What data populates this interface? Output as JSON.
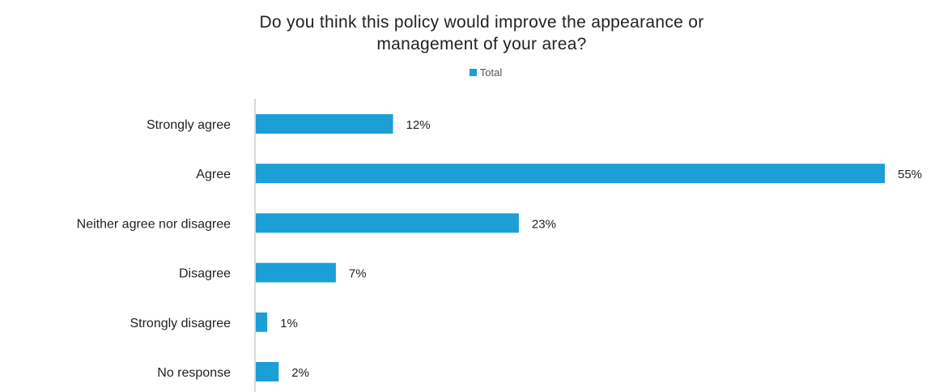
{
  "chart_data": {
    "type": "bar",
    "orientation": "horizontal",
    "title_line1": "Do you think this policy would improve the appearance or",
    "title_line2": "management of your area?",
    "legend": [
      "Total"
    ],
    "categories": [
      "Strongly agree",
      "Agree",
      "Neither agree nor disagree",
      "Disagree",
      "Strongly disagree",
      "No response"
    ],
    "series": [
      {
        "name": "Total",
        "values": [
          12,
          55,
          23,
          7,
          1,
          2
        ],
        "labels": [
          "12%",
          "55%",
          "23%",
          "7%",
          "1%",
          "2%"
        ],
        "color": "#1b9fd6"
      }
    ],
    "xlim": [
      0,
      55
    ],
    "grid": false,
    "legend_position": "top-center"
  }
}
